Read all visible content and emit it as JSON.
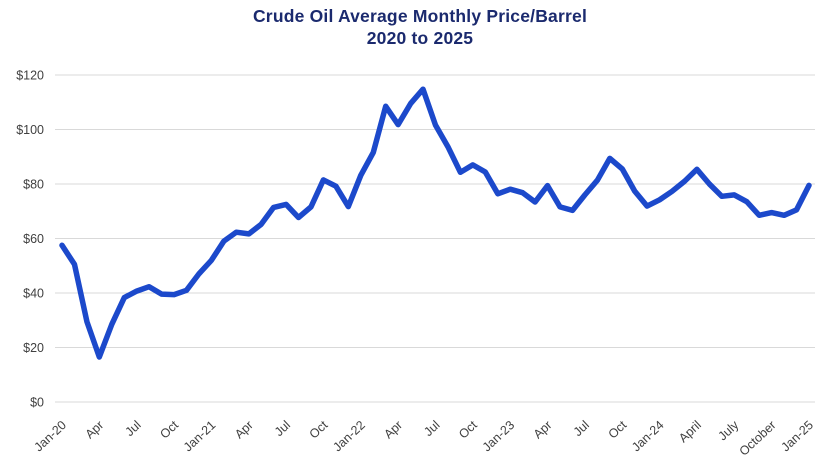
{
  "chart": {
    "title": "Crude Oil Average Monthly Price/Barrel",
    "subtitle": "2020 to 2025",
    "title_color": "#1b2a6e"
  },
  "chart_data": {
    "type": "line",
    "title": "Crude Oil Average Monthly Price/Barrel",
    "subtitle": "2020 to 2025",
    "xlabel": "",
    "ylabel": "",
    "legend": "none",
    "grid": "horizontal",
    "ylim": [
      0,
      120
    ],
    "y_ticks": [
      {
        "label": "$0",
        "value": 0
      },
      {
        "label": "$20",
        "value": 20
      },
      {
        "label": "$40",
        "value": 40
      },
      {
        "label": "$60",
        "value": 60
      },
      {
        "label": "$80",
        "value": 80
      },
      {
        "label": "$100",
        "value": 100
      },
      {
        "label": "$120",
        "value": 120
      }
    ],
    "x_tick_step": 3,
    "x_tick_labels_shown": [
      "Jan-20",
      "Apr",
      "Jul",
      "Oct",
      "Jan-21",
      "Apr",
      "Jul",
      "Oct",
      "Jan-22",
      "Apr",
      "Jul",
      "Oct",
      "Jan-23",
      "Apr",
      "Jul",
      "Oct",
      "Jan-24",
      "April",
      "July",
      "October",
      "Jan-25"
    ],
    "x": [
      "Jan-20",
      "Feb-20",
      "Mar-20",
      "Apr-20",
      "May-20",
      "Jun-20",
      "Jul-20",
      "Aug-20",
      "Sep-20",
      "Oct-20",
      "Nov-20",
      "Dec-20",
      "Jan-21",
      "Feb-21",
      "Mar-21",
      "Apr-21",
      "May-21",
      "Jun-21",
      "Jul-21",
      "Aug-21",
      "Sep-21",
      "Oct-21",
      "Nov-21",
      "Dec-21",
      "Jan-22",
      "Feb-22",
      "Mar-22",
      "Apr-22",
      "May-22",
      "Jun-22",
      "Jul-22",
      "Aug-22",
      "Sep-22",
      "Oct-22",
      "Nov-22",
      "Dec-22",
      "Jan-23",
      "Feb-23",
      "Mar-23",
      "Apr-23",
      "May-23",
      "Jun-23",
      "Jul-23",
      "Aug-23",
      "Sep-23",
      "Oct-23",
      "Nov-23",
      "Dec-23",
      "Jan-24",
      "Feb-24",
      "Mar-24",
      "Apr-24",
      "May-24",
      "Jun-24",
      "Jul-24",
      "Aug-24",
      "Sep-24",
      "Oct-24",
      "Nov-24",
      "Dec-24",
      "Jan-25"
    ],
    "series": [
      {
        "name": "Crude oil average monthly price per barrel (USD)",
        "values": [
          57.5,
          50.5,
          29.5,
          16.5,
          28.5,
          38.3,
          40.7,
          42.3,
          39.6,
          39.4,
          41.0,
          47.0,
          52.0,
          59.0,
          62.3,
          61.7,
          65.2,
          71.4,
          72.5,
          67.7,
          71.6,
          81.5,
          79.2,
          71.7,
          83.2,
          91.6,
          108.5,
          101.8,
          109.5,
          114.8,
          101.6,
          93.7,
          84.3,
          87.0,
          84.4,
          76.4,
          78.1,
          76.8,
          73.4,
          79.4,
          71.6,
          70.3,
          76.0,
          81.4,
          89.4,
          85.5,
          77.4,
          71.9,
          74.2,
          77.3,
          81.0,
          85.4,
          80.0,
          75.5,
          76.0,
          73.5,
          68.5,
          69.5,
          68.5,
          70.5,
          79.5
        ]
      }
    ],
    "line_color": "#1c49cb",
    "line_width": 5.5,
    "gridline_color": "#d9d9d9",
    "tick_label_color": "#404040"
  }
}
